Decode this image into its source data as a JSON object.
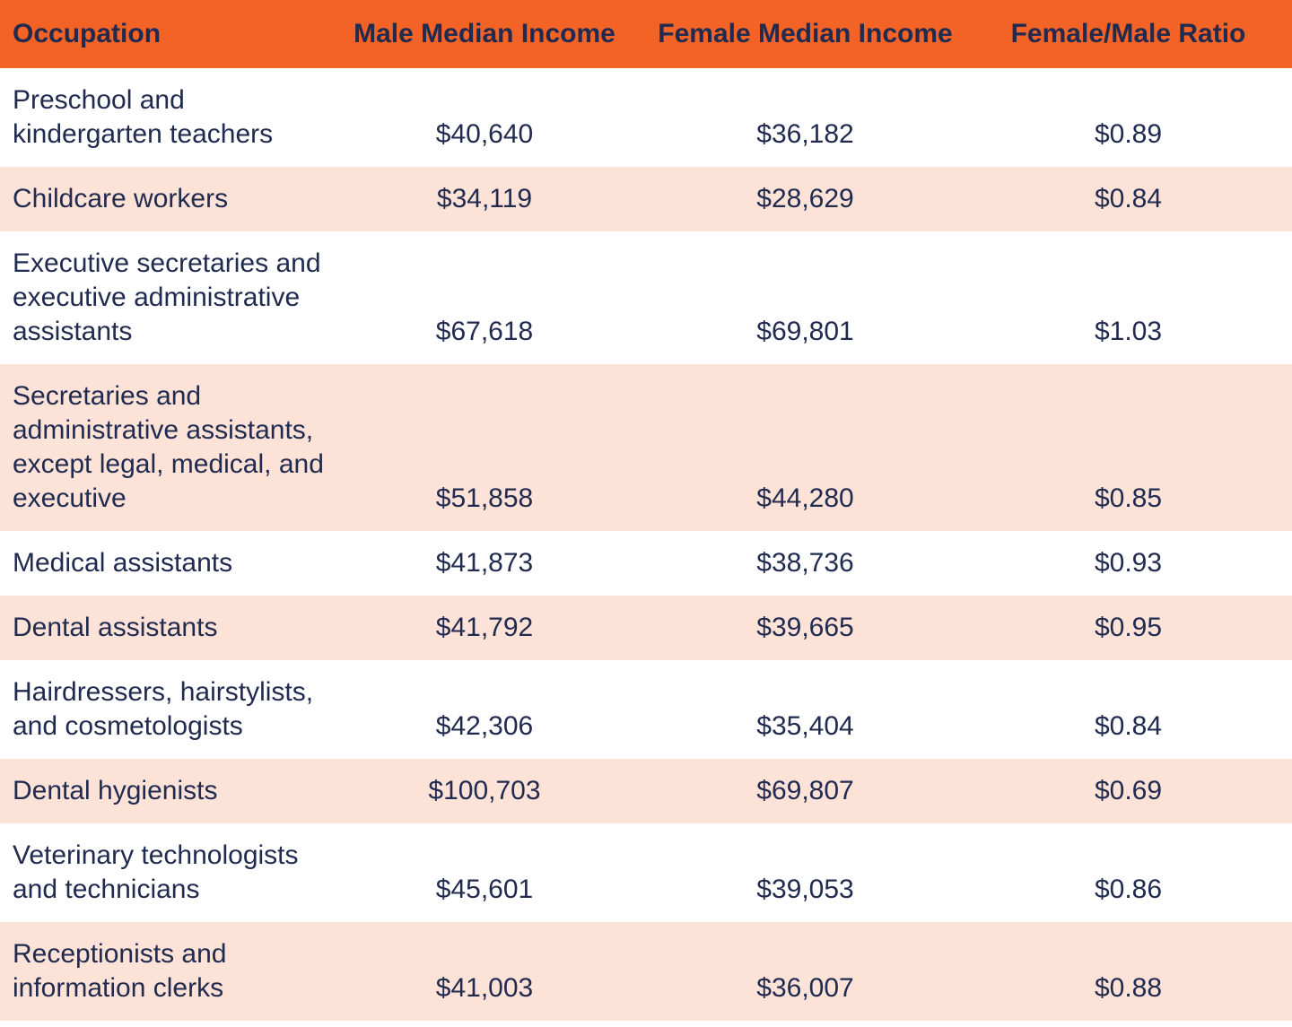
{
  "table": {
    "columns": [
      {
        "label": "Occupation"
      },
      {
        "label": "Male Median Income"
      },
      {
        "label": "Female Median Income"
      },
      {
        "label": "Female/Male Ratio"
      }
    ],
    "rows": [
      {
        "occupation": "Preschool and kindergarten teachers",
        "male_median_income": "$40,640",
        "female_median_income": "$36,182",
        "female_male_ratio": "$0.89"
      },
      {
        "occupation": "Childcare workers",
        "male_median_income": "$34,119",
        "female_median_income": "$28,629",
        "female_male_ratio": "$0.84"
      },
      {
        "occupation": "Executive secretaries and executive administrative assistants",
        "male_median_income": "$67,618",
        "female_median_income": "$69,801",
        "female_male_ratio": "$1.03"
      },
      {
        "occupation": "Secretaries and administrative assistants, except legal, medical, and executive",
        "male_median_income": "$51,858",
        "female_median_income": "$44,280",
        "female_male_ratio": "$0.85"
      },
      {
        "occupation": "Medical assistants",
        "male_median_income": "$41,873",
        "female_median_income": "$38,736",
        "female_male_ratio": "$0.93"
      },
      {
        "occupation": "Dental assistants",
        "male_median_income": "$41,792",
        "female_median_income": "$39,665",
        "female_male_ratio": "$0.95"
      },
      {
        "occupation": "Hairdressers, hairstylists, and cosmetologists",
        "male_median_income": "$42,306",
        "female_median_income": "$35,404",
        "female_male_ratio": "$0.84"
      },
      {
        "occupation": "Dental hygienists",
        "male_median_income": "$100,703",
        "female_median_income": "$69,807",
        "female_male_ratio": "$0.69"
      },
      {
        "occupation": "Veterinary technologists and technicians",
        "male_median_income": "$45,601",
        "female_median_income": "$39,053",
        "female_male_ratio": "$0.86"
      },
      {
        "occupation": "Receptionists and information clerks",
        "male_median_income": "$41,003",
        "female_median_income": "$36,007",
        "female_male_ratio": "$0.88"
      }
    ]
  },
  "colors": {
    "header_bg": "#F26325",
    "row_bg": "#FFFFFF",
    "row_alt_bg": "#FCE2D7",
    "text": "#212A4F"
  },
  "chart_data": {
    "type": "table",
    "columns": [
      "Occupation",
      "Male Median Income",
      "Female Median Income",
      "Female/Male Ratio"
    ],
    "rows": [
      [
        "Preschool and kindergarten teachers",
        40640,
        36182,
        0.89
      ],
      [
        "Childcare workers",
        34119,
        28629,
        0.84
      ],
      [
        "Executive secretaries and executive administrative assistants",
        67618,
        69801,
        1.03
      ],
      [
        "Secretaries and administrative assistants, except legal, medical, and executive",
        51858,
        44280,
        0.85
      ],
      [
        "Medical assistants",
        41873,
        38736,
        0.93
      ],
      [
        "Dental assistants",
        41792,
        39665,
        0.95
      ],
      [
        "Hairdressers, hairstylists, and cosmetologists",
        42306,
        35404,
        0.84
      ],
      [
        "Dental hygienists",
        100703,
        69807,
        0.69
      ],
      [
        "Veterinary technologists and technicians",
        45601,
        39053,
        0.86
      ],
      [
        "Receptionists and information clerks",
        41003,
        36007,
        0.88
      ]
    ],
    "layout_hints": {
      "header_style": "orange banner, bold navy text",
      "row_striping": "white / light-peach alternating starting with white",
      "value_alignment": "columns 2-4 centered, values bottom-aligned with wrapped occupation text"
    }
  }
}
